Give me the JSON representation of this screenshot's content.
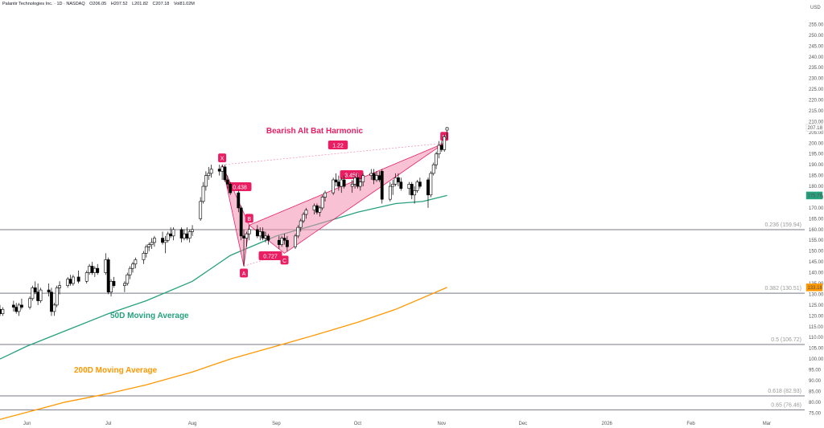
{
  "header": {
    "symbol": "Palantir Technologies Inc. · 1D · NASDAQ",
    "open": "O206.05",
    "high": "H207.52",
    "low": "L201.82",
    "close": "C207.18",
    "volume": "Vol81.02M"
  },
  "colors": {
    "ma50": "#26a17e",
    "ma200": "#ff9800",
    "pattern": "#e91e63",
    "pattern_fill": "#f48fb1",
    "fib_line": "#787b86",
    "candle_up_fill": "#ffffff",
    "candle_down_fill": "#000000"
  },
  "chart_data": {
    "type": "candlestick",
    "currency": "USD",
    "y_axis": {
      "min": 72.5,
      "max": 260,
      "ticks": [
        "75.00",
        "80.00",
        "85.00",
        "90.00",
        "95.00",
        "100.00",
        "105.00",
        "110.00",
        "115.00",
        "120.00",
        "125.00",
        "130.00",
        "135.00",
        "140.00",
        "145.00",
        "150.00",
        "155.00",
        "160.00",
        "165.00",
        "170.00",
        "175.00",
        "180.00",
        "185.00",
        "190.00",
        "195.00",
        "200.00",
        "205.00",
        "210.00",
        "215.00",
        "220.00",
        "225.00",
        "230.00",
        "235.00",
        "240.00",
        "245.00",
        "250.00",
        "255.00"
      ]
    },
    "x_axis": {
      "labels": [
        "Jun",
        "Jul",
        "Aug",
        "Sep",
        "Oct",
        "Nov",
        "Dec",
        "2026",
        "Feb",
        "Mar"
      ],
      "label_dates": [
        "2025-06-01",
        "2025-07-01",
        "2025-08-01",
        "2025-09-01",
        "2025-10-01",
        "2025-11-01",
        "2025-12-01",
        "2026-01-01",
        "2026-02-01",
        "2026-03-01"
      ],
      "start": "2025-05-22",
      "end": "2026-03-15"
    },
    "price_tags": [
      {
        "value": 207.18,
        "label": "207.18",
        "color": "#ffffff",
        "text_color": "#131722"
      },
      {
        "value": 175.76,
        "label": "175.76",
        "color": "#26a17e",
        "text_color": "#ffffff"
      },
      {
        "value": 133.18,
        "label": "133.18",
        "color": "#ff9800",
        "text_color": "#131722"
      }
    ],
    "fib_levels": [
      {
        "value": 159.94,
        "label": "0.236 (159.94)"
      },
      {
        "value": 130.51,
        "label": "0.382 (130.51)"
      },
      {
        "value": 106.72,
        "label": "0.5 (106.72)"
      },
      {
        "value": 82.93,
        "label": "0.618 (82.93)"
      },
      {
        "value": 76.46,
        "label": "0.65 (76.46)"
      }
    ],
    "candles": [
      {
        "d": "2025-05-22",
        "o": 123,
        "h": 125,
        "l": 120,
        "c": 121
      },
      {
        "d": "2025-05-23",
        "o": 121,
        "h": 124,
        "l": 120,
        "c": 123
      },
      {
        "d": "2025-05-27",
        "o": 125,
        "h": 127,
        "l": 122,
        "c": 124
      },
      {
        "d": "2025-05-28",
        "o": 124,
        "h": 126,
        "l": 121,
        "c": 122
      },
      {
        "d": "2025-05-29",
        "o": 122,
        "h": 126,
        "l": 120,
        "c": 125
      },
      {
        "d": "2025-05-30",
        "o": 125,
        "h": 128,
        "l": 123,
        "c": 124
      },
      {
        "d": "2025-06-02",
        "o": 124,
        "h": 129,
        "l": 123,
        "c": 128
      },
      {
        "d": "2025-06-03",
        "o": 128,
        "h": 134,
        "l": 127,
        "c": 133
      },
      {
        "d": "2025-06-04",
        "o": 133,
        "h": 136,
        "l": 130,
        "c": 131
      },
      {
        "d": "2025-06-05",
        "o": 131,
        "h": 135,
        "l": 125,
        "c": 127
      },
      {
        "d": "2025-06-06",
        "o": 127,
        "h": 133,
        "l": 126,
        "c": 132
      },
      {
        "d": "2025-06-09",
        "o": 132,
        "h": 135,
        "l": 129,
        "c": 131
      },
      {
        "d": "2025-06-10",
        "o": 131,
        "h": 133,
        "l": 120,
        "c": 122
      },
      {
        "d": "2025-06-11",
        "o": 122,
        "h": 126,
        "l": 120,
        "c": 125
      },
      {
        "d": "2025-06-12",
        "o": 125,
        "h": 134,
        "l": 124,
        "c": 133
      },
      {
        "d": "2025-06-13",
        "o": 133,
        "h": 136,
        "l": 130,
        "c": 134
      },
      {
        "d": "2025-06-16",
        "o": 134,
        "h": 138,
        "l": 133,
        "c": 137
      },
      {
        "d": "2025-06-17",
        "o": 137,
        "h": 139,
        "l": 134,
        "c": 135
      },
      {
        "d": "2025-06-18",
        "o": 135,
        "h": 139,
        "l": 134,
        "c": 138
      },
      {
        "d": "2025-06-20",
        "o": 138,
        "h": 141,
        "l": 135,
        "c": 136
      },
      {
        "d": "2025-06-23",
        "o": 136,
        "h": 141,
        "l": 135,
        "c": 140
      },
      {
        "d": "2025-06-24",
        "o": 140,
        "h": 144,
        "l": 139,
        "c": 143
      },
      {
        "d": "2025-06-25",
        "o": 143,
        "h": 145,
        "l": 139,
        "c": 140
      },
      {
        "d": "2025-06-26",
        "o": 140,
        "h": 143,
        "l": 138,
        "c": 142
      },
      {
        "d": "2025-06-27",
        "o": 142,
        "h": 144,
        "l": 139,
        "c": 140
      },
      {
        "d": "2025-06-30",
        "o": 140,
        "h": 149,
        "l": 139,
        "c": 146
      },
      {
        "d": "2025-07-01",
        "o": 146,
        "h": 147,
        "l": 130,
        "c": 131
      },
      {
        "d": "2025-07-02",
        "o": 131,
        "h": 137,
        "l": 129,
        "c": 136
      },
      {
        "d": "2025-07-03",
        "o": 136,
        "h": 138,
        "l": 133,
        "c": 134
      },
      {
        "d": "2025-07-07",
        "o": 134,
        "h": 136,
        "l": 131,
        "c": 135
      },
      {
        "d": "2025-07-08",
        "o": 135,
        "h": 140,
        "l": 134,
        "c": 139
      },
      {
        "d": "2025-07-09",
        "o": 139,
        "h": 143,
        "l": 137,
        "c": 142
      },
      {
        "d": "2025-07-10",
        "o": 142,
        "h": 145,
        "l": 140,
        "c": 144
      },
      {
        "d": "2025-07-11",
        "o": 144,
        "h": 147,
        "l": 142,
        "c": 146
      },
      {
        "d": "2025-07-14",
        "o": 146,
        "h": 150,
        "l": 144,
        "c": 149
      },
      {
        "d": "2025-07-15",
        "o": 149,
        "h": 153,
        "l": 147,
        "c": 152
      },
      {
        "d": "2025-07-16",
        "o": 152,
        "h": 154,
        "l": 150,
        "c": 153
      },
      {
        "d": "2025-07-17",
        "o": 153,
        "h": 156,
        "l": 151,
        "c": 154
      },
      {
        "d": "2025-07-18",
        "o": 154,
        "h": 157,
        "l": 152,
        "c": 156
      },
      {
        "d": "2025-07-21",
        "o": 156,
        "h": 159,
        "l": 153,
        "c": 154
      },
      {
        "d": "2025-07-22",
        "o": 154,
        "h": 157,
        "l": 149,
        "c": 155
      },
      {
        "d": "2025-07-23",
        "o": 155,
        "h": 159,
        "l": 154,
        "c": 158
      },
      {
        "d": "2025-07-24",
        "o": 158,
        "h": 161,
        "l": 156,
        "c": 157
      },
      {
        "d": "2025-07-25",
        "o": 157,
        "h": 161,
        "l": 155,
        "c": 160
      },
      {
        "d": "2025-07-28",
        "o": 160,
        "h": 161,
        "l": 154,
        "c": 156
      },
      {
        "d": "2025-07-29",
        "o": 156,
        "h": 160,
        "l": 155,
        "c": 158
      },
      {
        "d": "2025-07-30",
        "o": 158,
        "h": 161,
        "l": 155,
        "c": 156
      },
      {
        "d": "2025-07-31",
        "o": 156,
        "h": 160,
        "l": 154,
        "c": 159
      },
      {
        "d": "2025-08-01",
        "o": 159,
        "h": 162,
        "l": 157,
        "c": 160
      },
      {
        "d": "2025-08-04",
        "o": 165,
        "h": 175,
        "l": 164,
        "c": 173
      },
      {
        "d": "2025-08-05",
        "o": 173,
        "h": 182,
        "l": 172,
        "c": 180
      },
      {
        "d": "2025-08-06",
        "o": 180,
        "h": 187,
        "l": 178,
        "c": 185
      },
      {
        "d": "2025-08-07",
        "o": 185,
        "h": 189,
        "l": 183,
        "c": 186
      },
      {
        "d": "2025-08-08",
        "o": 186,
        "h": 190,
        "l": 184,
        "c": 188
      },
      {
        "d": "2025-08-11",
        "o": 188,
        "h": 190,
        "l": 185,
        "c": 187
      },
      {
        "d": "2025-08-12",
        "o": 187,
        "h": 190,
        "l": 183,
        "c": 189
      },
      {
        "d": "2025-08-13",
        "o": 189,
        "h": 190,
        "l": 182,
        "c": 183
      },
      {
        "d": "2025-08-14",
        "o": 183,
        "h": 185,
        "l": 179,
        "c": 181
      },
      {
        "d": "2025-08-15",
        "o": 181,
        "h": 182,
        "l": 176,
        "c": 177
      },
      {
        "d": "2025-08-18",
        "o": 177,
        "h": 178,
        "l": 168,
        "c": 170
      },
      {
        "d": "2025-08-19",
        "o": 170,
        "h": 171,
        "l": 155,
        "c": 157
      },
      {
        "d": "2025-08-20",
        "o": 157,
        "h": 160,
        "l": 143,
        "c": 156
      },
      {
        "d": "2025-08-21",
        "o": 156,
        "h": 159,
        "l": 152,
        "c": 158
      },
      {
        "d": "2025-08-22",
        "o": 158,
        "h": 162,
        "l": 155,
        "c": 160
      },
      {
        "d": "2025-08-25",
        "o": 160,
        "h": 162,
        "l": 156,
        "c": 157
      },
      {
        "d": "2025-08-26",
        "o": 157,
        "h": 161,
        "l": 155,
        "c": 159
      },
      {
        "d": "2025-08-27",
        "o": 159,
        "h": 161,
        "l": 155,
        "c": 156
      },
      {
        "d": "2025-08-28",
        "o": 156,
        "h": 159,
        "l": 154,
        "c": 157
      },
      {
        "d": "2025-08-29",
        "o": 157,
        "h": 158,
        "l": 153,
        "c": 155
      },
      {
        "d": "2025-09-02",
        "o": 155,
        "h": 157,
        "l": 151,
        "c": 153
      },
      {
        "d": "2025-09-03",
        "o": 153,
        "h": 157,
        "l": 152,
        "c": 156
      },
      {
        "d": "2025-09-04",
        "o": 156,
        "h": 158,
        "l": 153,
        "c": 155
      },
      {
        "d": "2025-09-05",
        "o": 155,
        "h": 157,
        "l": 150,
        "c": 152
      },
      {
        "d": "2025-09-08",
        "o": 152,
        "h": 158,
        "l": 151,
        "c": 157
      },
      {
        "d": "2025-09-09",
        "o": 157,
        "h": 162,
        "l": 156,
        "c": 161
      },
      {
        "d": "2025-09-10",
        "o": 161,
        "h": 165,
        "l": 159,
        "c": 164
      },
      {
        "d": "2025-09-11",
        "o": 164,
        "h": 168,
        "l": 163,
        "c": 167
      },
      {
        "d": "2025-09-12",
        "o": 167,
        "h": 170,
        "l": 165,
        "c": 169
      },
      {
        "d": "2025-09-15",
        "o": 169,
        "h": 172,
        "l": 167,
        "c": 171
      },
      {
        "d": "2025-09-16",
        "o": 171,
        "h": 172,
        "l": 167,
        "c": 168
      },
      {
        "d": "2025-09-17",
        "o": 168,
        "h": 171,
        "l": 166,
        "c": 170
      },
      {
        "d": "2025-09-18",
        "o": 170,
        "h": 176,
        "l": 169,
        "c": 175
      },
      {
        "d": "2025-09-19",
        "o": 175,
        "h": 178,
        "l": 173,
        "c": 177
      },
      {
        "d": "2025-09-22",
        "o": 177,
        "h": 184,
        "l": 176,
        "c": 183
      },
      {
        "d": "2025-09-23",
        "o": 183,
        "h": 186,
        "l": 180,
        "c": 182
      },
      {
        "d": "2025-09-24",
        "o": 182,
        "h": 185,
        "l": 178,
        "c": 180
      },
      {
        "d": "2025-09-25",
        "o": 180,
        "h": 184,
        "l": 177,
        "c": 183
      },
      {
        "d": "2025-09-26",
        "o": 183,
        "h": 185,
        "l": 179,
        "c": 180
      },
      {
        "d": "2025-09-29",
        "o": 180,
        "h": 183,
        "l": 177,
        "c": 181
      },
      {
        "d": "2025-09-30",
        "o": 181,
        "h": 185,
        "l": 179,
        "c": 184
      },
      {
        "d": "2025-10-01",
        "o": 184,
        "h": 186,
        "l": 179,
        "c": 180
      },
      {
        "d": "2025-10-02",
        "o": 180,
        "h": 184,
        "l": 178,
        "c": 182
      },
      {
        "d": "2025-10-03",
        "o": 182,
        "h": 186,
        "l": 180,
        "c": 185
      },
      {
        "d": "2025-10-06",
        "o": 185,
        "h": 188,
        "l": 183,
        "c": 186
      },
      {
        "d": "2025-10-07",
        "o": 186,
        "h": 188,
        "l": 181,
        "c": 183
      },
      {
        "d": "2025-10-08",
        "o": 183,
        "h": 187,
        "l": 182,
        "c": 185
      },
      {
        "d": "2025-10-09",
        "o": 185,
        "h": 187,
        "l": 182,
        "c": 183
      },
      {
        "d": "2025-10-10",
        "o": 187,
        "h": 188,
        "l": 172,
        "c": 174
      },
      {
        "d": "2025-10-13",
        "o": 174,
        "h": 182,
        "l": 173,
        "c": 180
      },
      {
        "d": "2025-10-14",
        "o": 180,
        "h": 183,
        "l": 176,
        "c": 181
      },
      {
        "d": "2025-10-15",
        "o": 181,
        "h": 186,
        "l": 180,
        "c": 184
      },
      {
        "d": "2025-10-16",
        "o": 184,
        "h": 186,
        "l": 180,
        "c": 182
      },
      {
        "d": "2025-10-17",
        "o": 182,
        "h": 184,
        "l": 178,
        "c": 179
      },
      {
        "d": "2025-10-20",
        "o": 179,
        "h": 182,
        "l": 176,
        "c": 181
      },
      {
        "d": "2025-10-21",
        "o": 181,
        "h": 182,
        "l": 174,
        "c": 176
      },
      {
        "d": "2025-10-22",
        "o": 176,
        "h": 180,
        "l": 172,
        "c": 178
      },
      {
        "d": "2025-10-23",
        "o": 178,
        "h": 183,
        "l": 177,
        "c": 182
      },
      {
        "d": "2025-10-24",
        "o": 182,
        "h": 184,
        "l": 179,
        "c": 180
      },
      {
        "d": "2025-10-27",
        "o": 183,
        "h": 184,
        "l": 170,
        "c": 176
      },
      {
        "d": "2025-10-28",
        "o": 176,
        "h": 187,
        "l": 175,
        "c": 186
      },
      {
        "d": "2025-10-29",
        "o": 186,
        "h": 191,
        "l": 185,
        "c": 190
      },
      {
        "d": "2025-10-30",
        "o": 190,
        "h": 196,
        "l": 188,
        "c": 195
      },
      {
        "d": "2025-10-31",
        "o": 195,
        "h": 201,
        "l": 193,
        "c": 199
      },
      {
        "d": "2025-11-01",
        "o": 199,
        "h": 201,
        "l": 196,
        "c": 197
      },
      {
        "d": "2025-11-02",
        "o": 197,
        "h": 204,
        "l": 196,
        "c": 203
      },
      {
        "d": "2025-11-03",
        "o": 206.05,
        "h": 207.52,
        "l": 201.82,
        "c": 207.18
      }
    ],
    "ma50": [
      {
        "d": "2025-05-22",
        "v": 100
      },
      {
        "d": "2025-06-01",
        "v": 106
      },
      {
        "d": "2025-06-15",
        "v": 113
      },
      {
        "d": "2025-07-01",
        "v": 121
      },
      {
        "d": "2025-07-15",
        "v": 127
      },
      {
        "d": "2025-08-01",
        "v": 136
      },
      {
        "d": "2025-08-15",
        "v": 148
      },
      {
        "d": "2025-09-01",
        "v": 157
      },
      {
        "d": "2025-09-15",
        "v": 162
      },
      {
        "d": "2025-10-01",
        "v": 168
      },
      {
        "d": "2025-10-15",
        "v": 172
      },
      {
        "d": "2025-10-25",
        "v": 173
      },
      {
        "d": "2025-11-03",
        "v": 175.76
      }
    ],
    "ma200": [
      {
        "d": "2025-05-22",
        "v": 72
      },
      {
        "d": "2025-06-15",
        "v": 80
      },
      {
        "d": "2025-07-01",
        "v": 84
      },
      {
        "d": "2025-07-15",
        "v": 88
      },
      {
        "d": "2025-08-01",
        "v": 94
      },
      {
        "d": "2025-08-15",
        "v": 100
      },
      {
        "d": "2025-09-01",
        "v": 106
      },
      {
        "d": "2025-09-15",
        "v": 111
      },
      {
        "d": "2025-10-01",
        "v": 117
      },
      {
        "d": "2025-10-15",
        "v": 123
      },
      {
        "d": "2025-11-03",
        "v": 133.18
      }
    ],
    "pattern": {
      "name": "Bearish Alt Bat Harmonic",
      "points": [
        {
          "label": "X",
          "d": "2025-08-12",
          "v": 190
        },
        {
          "label": "A",
          "d": "2025-08-20",
          "v": 143
        },
        {
          "label": "B",
          "d": "2025-08-22",
          "v": 162
        },
        {
          "label": "C",
          "d": "2025-09-04",
          "v": 149
        },
        {
          "label": "D",
          "d": "2025-11-02",
          "v": 200
        }
      ],
      "ratios": [
        {
          "label": "0.438",
          "between": [
            "X",
            "B"
          ]
        },
        {
          "label": "0.727",
          "between": [
            "A",
            "C"
          ]
        },
        {
          "label": "3.458",
          "between": [
            "B",
            "D"
          ]
        },
        {
          "label": "1.22",
          "between": [
            "X",
            "D"
          ]
        }
      ]
    },
    "annotations": [
      {
        "text": "50D Moving Average",
        "color": "#26a17e"
      },
      {
        "text": "200D Moving Average",
        "color": "#ff9800"
      }
    ]
  }
}
